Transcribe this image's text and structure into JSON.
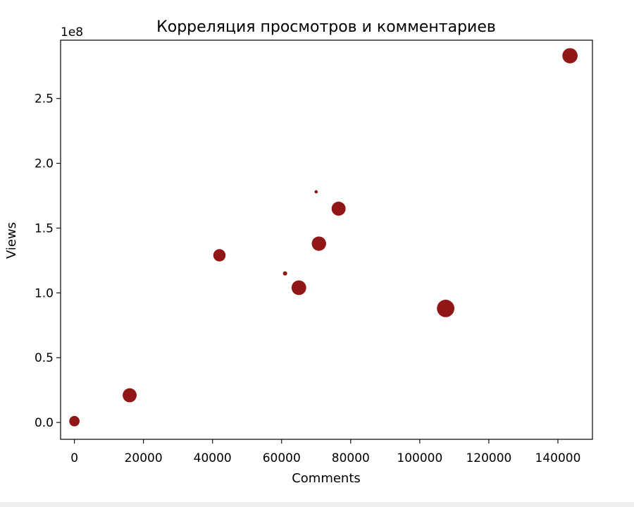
{
  "chart_data": {
    "type": "scatter",
    "title": "Корреляция просмотров и комментариев",
    "xlabel": "Comments",
    "ylabel": "Views",
    "y_offset_label": "1e8",
    "xlim": [
      -4000,
      150000
    ],
    "ylim": [
      -0.13,
      2.95
    ],
    "x_ticks": [
      0,
      20000,
      40000,
      60000,
      80000,
      100000,
      120000,
      140000
    ],
    "x_tick_labels": [
      "0",
      "20000",
      "40000",
      "60000",
      "80000",
      "100000",
      "120000",
      "140000"
    ],
    "y_ticks": [
      0.0,
      0.5,
      1.0,
      1.5,
      2.0,
      2.5
    ],
    "y_tick_labels": [
      "0.0",
      "0.5",
      "1.0",
      "1.5",
      "2.0",
      "2.5"
    ],
    "grid": false,
    "marker_color": "#8b0a0a",
    "points": [
      {
        "x": 0,
        "y": 0.01,
        "size": 60
      },
      {
        "x": 16000,
        "y": 0.21,
        "size": 110
      },
      {
        "x": 42000,
        "y": 1.29,
        "size": 85
      },
      {
        "x": 61000,
        "y": 1.15,
        "size": 10
      },
      {
        "x": 65000,
        "y": 1.04,
        "size": 120
      },
      {
        "x": 70000,
        "y": 1.78,
        "size": 6
      },
      {
        "x": 70800,
        "y": 1.38,
        "size": 115
      },
      {
        "x": 76500,
        "y": 1.65,
        "size": 110
      },
      {
        "x": 107500,
        "y": 0.88,
        "size": 170
      },
      {
        "x": 143500,
        "y": 2.83,
        "size": 130
      }
    ]
  }
}
